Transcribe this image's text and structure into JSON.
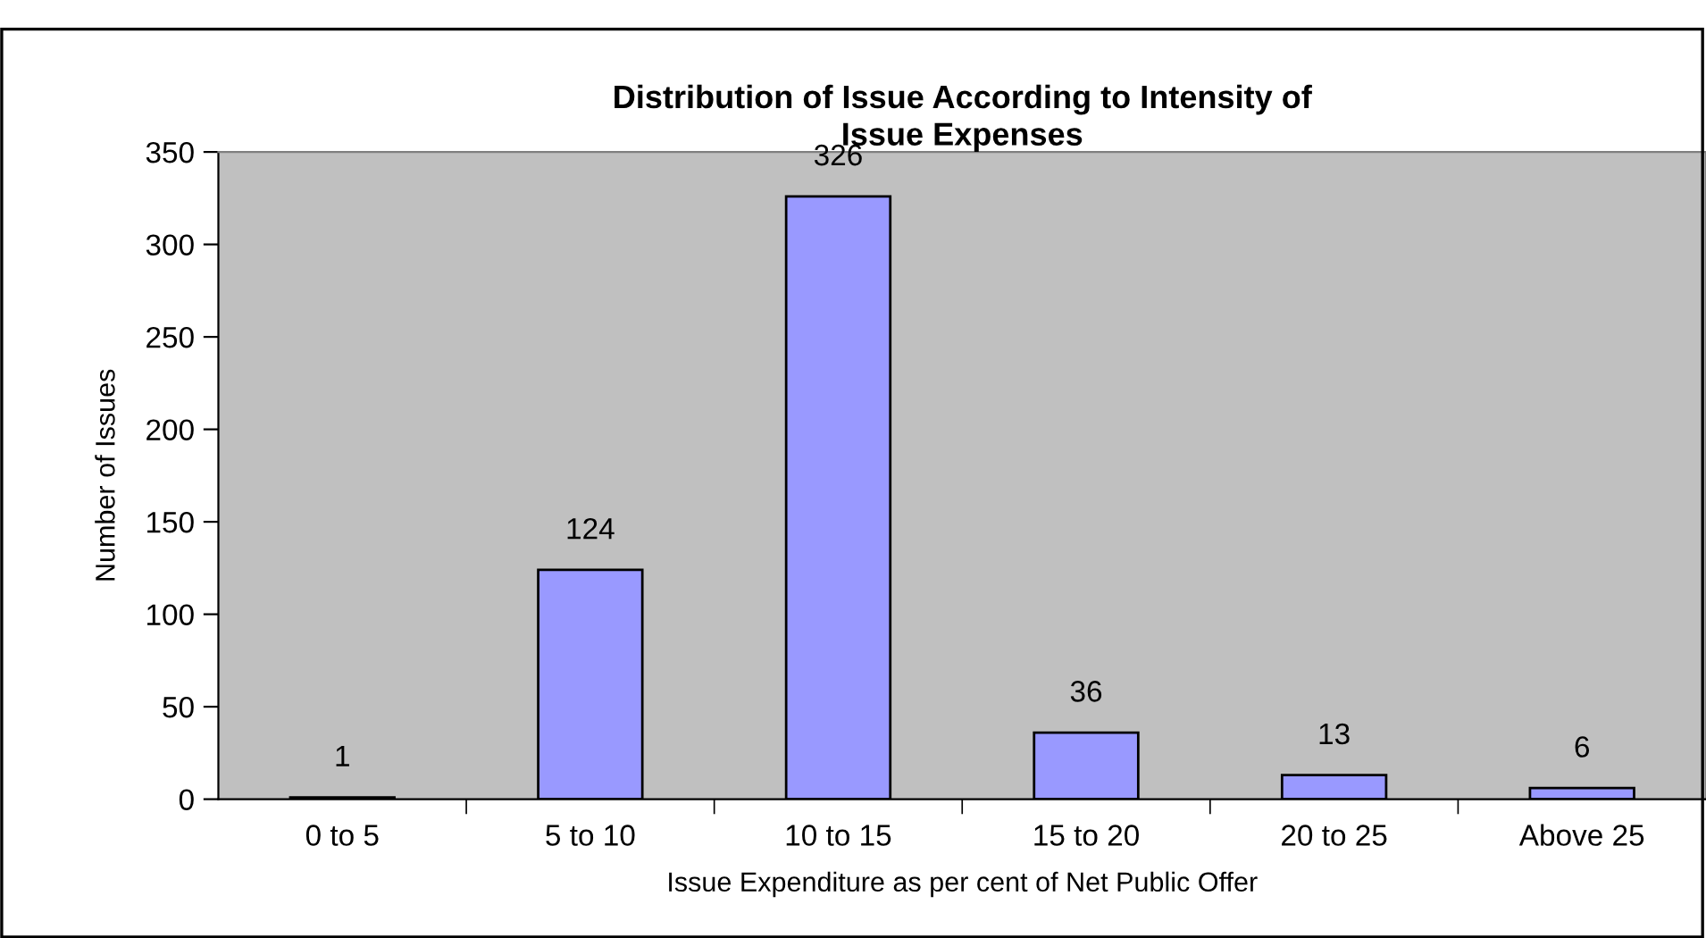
{
  "chart_data": {
    "type": "bar",
    "title": "Distribution of Issue According to Intensity of\nIssue Expenses",
    "xlabel": "Issue Expenditure as per cent of Net Public Offer",
    "ylabel": "Number of Issues",
    "categories": [
      "0 to 5",
      "5 to 10",
      "10 to 15",
      "15 to 20",
      "20 to 25",
      "Above 25"
    ],
    "values": [
      1,
      124,
      326,
      36,
      13,
      6
    ],
    "color": "#9999ff",
    "ylim": [
      0,
      350
    ],
    "yticks": [
      0,
      50,
      100,
      150,
      200,
      250,
      300,
      350
    ],
    "data_labels": true,
    "grid": false,
    "legend": false
  }
}
